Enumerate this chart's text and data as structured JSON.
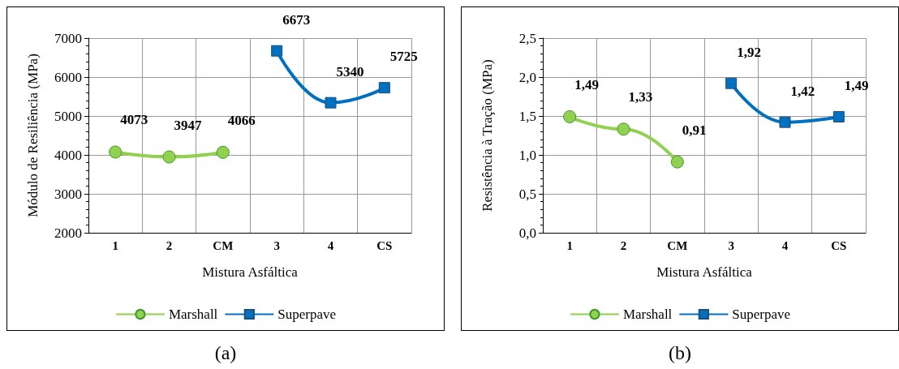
{
  "chart_data": [
    {
      "type": "line",
      "xlabel": "Mistura Asfáltica",
      "ylabel": "Módulo de Resiliência (MPa)",
      "categories": [
        "1",
        "2",
        "CM",
        "3",
        "4",
        "CS"
      ],
      "series": [
        {
          "name": "Marshall",
          "color": "#92d050",
          "marker": "circle",
          "values": [
            4073,
            3947,
            4066,
            null,
            null,
            null
          ]
        },
        {
          "name": "Superpave",
          "color": "#0070c0",
          "marker": "square",
          "values": [
            null,
            null,
            null,
            6673,
            5340,
            5725
          ]
        }
      ],
      "ylim": [
        2000,
        7000
      ],
      "yticks": [
        2000,
        3000,
        4000,
        5000,
        6000,
        7000
      ],
      "grid": true,
      "legend": "bottom",
      "data_labels": true,
      "annotations": [
        "(a)"
      ]
    },
    {
      "type": "line",
      "xlabel": "Mistura Asfáltica",
      "ylabel": "Resistência à Tração (MPa)",
      "categories": [
        "1",
        "2",
        "CM",
        "3",
        "4",
        "CS"
      ],
      "series": [
        {
          "name": "Marshall",
          "color": "#92d050",
          "marker": "circle",
          "values": [
            1.49,
            1.33,
            0.91,
            null,
            null,
            null
          ],
          "value_labels": [
            "1,49",
            "1,33",
            "0,91",
            null,
            null,
            null
          ]
        },
        {
          "name": "Superpave",
          "color": "#0070c0",
          "marker": "square",
          "values": [
            null,
            null,
            null,
            1.92,
            1.42,
            1.49
          ],
          "value_labels": [
            null,
            null,
            null,
            "1,92",
            "1,42",
            "1,49"
          ]
        }
      ],
      "ylim": [
        0,
        2.5
      ],
      "yticks": [
        {
          "value": 0,
          "label": "0,0"
        },
        {
          "value": 0.5,
          "label": "0,5"
        },
        {
          "value": 1,
          "label": "1,0"
        },
        {
          "value": 1.5,
          "label": "1,5"
        },
        {
          "value": 2,
          "label": "2,0"
        },
        {
          "value": 2.5,
          "label": "2,5"
        }
      ],
      "grid": true,
      "legend": "bottom",
      "annotations": [
        "(b)"
      ]
    }
  ]
}
